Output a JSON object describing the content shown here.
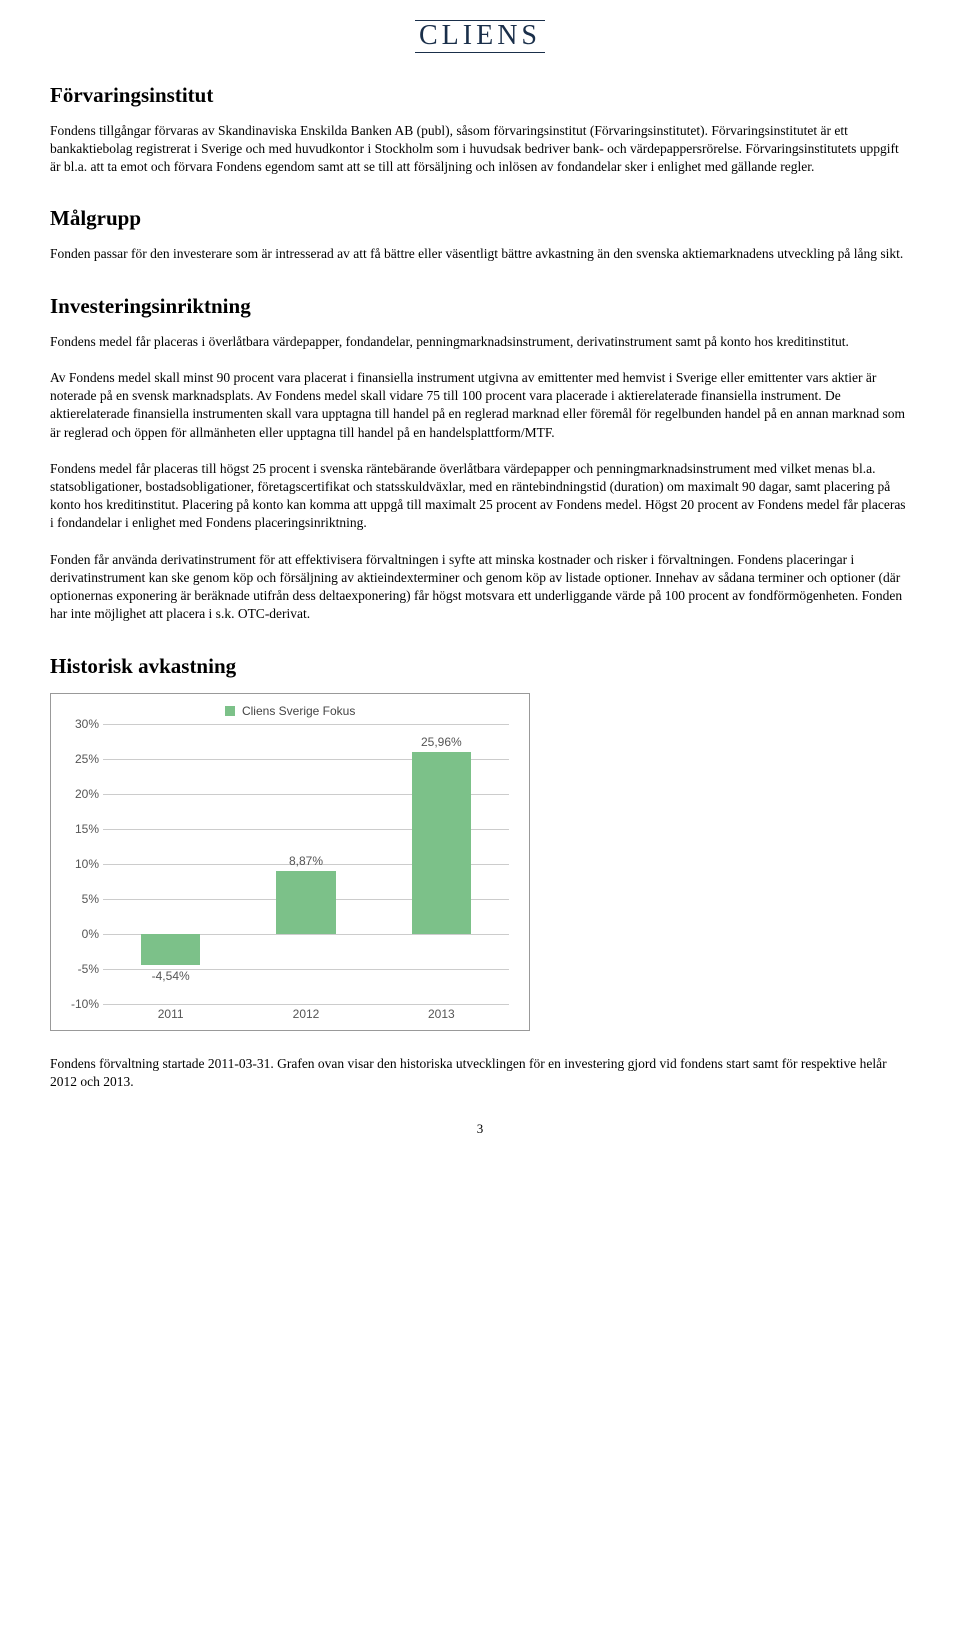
{
  "logo_text": "CLIENS",
  "sections": {
    "s1": {
      "heading": "Förvaringsinstitut",
      "p1": "Fondens tillgångar förvaras av Skandinaviska Enskilda Banken AB (publ), såsom förvaringsinstitut (Förvaringsinstitutet). Förvaringsinstitutet är ett bankaktiebolag registrerat i Sverige och med huvudkontor i Stockholm som i huvudsak bedriver bank- och värdepappersrörelse. Förvaringsinstitutets uppgift är bl.a. att ta emot och förvara Fondens egendom samt att se till att försäljning och inlösen av fondandelar sker i enlighet med gällande regler."
    },
    "s2": {
      "heading": "Målgrupp",
      "p1": "Fonden passar för den investerare som är intresserad av att få bättre eller väsentligt bättre avkastning än den svenska aktiemarknadens utveckling på lång sikt."
    },
    "s3": {
      "heading": "Investeringsinriktning",
      "p1": "Fondens medel får placeras i överlåtbara värdepapper, fondandelar, penningmarknadsinstrument, derivatinstrument samt på konto hos kreditinstitut.",
      "p2": "Av Fondens medel skall minst 90 procent vara placerat i finansiella instrument utgivna av emittenter med hemvist i Sverige eller emittenter vars aktier är noterade på en svensk marknadsplats. Av Fondens medel skall vidare 75 till 100 procent vara placerade i aktierelaterade finansiella instrument. De aktierelaterade finansiella instrumenten skall vara upptagna till handel på en reglerad marknad eller föremål för regelbunden handel på en annan marknad som är reglerad och öppen för allmänheten eller upptagna till handel på en handelsplattform/MTF.",
      "p3": "Fondens medel får placeras till högst 25 procent i svenska räntebärande överlåtbara värdepapper och penningmarknadsinstrument med vilket menas bl.a. statsobligationer, bostadsobligationer, företagscertifikat och statsskuldväxlar, med en räntebindningstid (duration) om maximalt 90 dagar, samt placering på konto hos kreditinstitut. Placering på konto kan komma att uppgå till maximalt 25 procent av Fondens medel. Högst 20 procent av Fondens medel får placeras i fondandelar i enlighet med Fondens placeringsinriktning.",
      "p4": "Fonden får använda derivatinstrument för att effektivisera förvaltningen i syfte att minska kostnader och risker i förvaltningen. Fondens placeringar i derivatinstrument kan ske genom köp och försäljning av aktieindexterminer och genom köp av listade optioner. Innehav av sådana terminer och optioner (där optionernas exponering är beräknade utifrån dess deltaexponering) får högst motsvara ett underliggande värde på 100 procent av fondförmögenheten. Fonden har inte möjlighet att placera i s.k. OTC-derivat."
    },
    "s4": {
      "heading": "Historisk avkastning",
      "caption": "Fondens förvaltning startade 2011-03-31. Grafen ovan visar den historiska utvecklingen för en investering gjord vid fondens start samt för respektive helår 2012 och 2013."
    }
  },
  "chart": {
    "type": "bar",
    "legend_label": "Cliens Sverige Fokus",
    "bar_color": "#7cc189",
    "grid_color": "#cccccc",
    "text_color": "#555555",
    "background_color": "#ffffff",
    "ymin": -10,
    "ymax": 30,
    "ystep": 5,
    "yticks": [
      "30%",
      "25%",
      "20%",
      "15%",
      "10%",
      "5%",
      "0%",
      "-5%",
      "-10%"
    ],
    "categories": [
      "2011",
      "2012",
      "2013"
    ],
    "values": [
      -4.54,
      8.87,
      25.96
    ],
    "value_labels": [
      "-4,54%",
      "8,87%",
      "25,96%"
    ],
    "bar_width_pct": 44
  },
  "page_number": "3"
}
